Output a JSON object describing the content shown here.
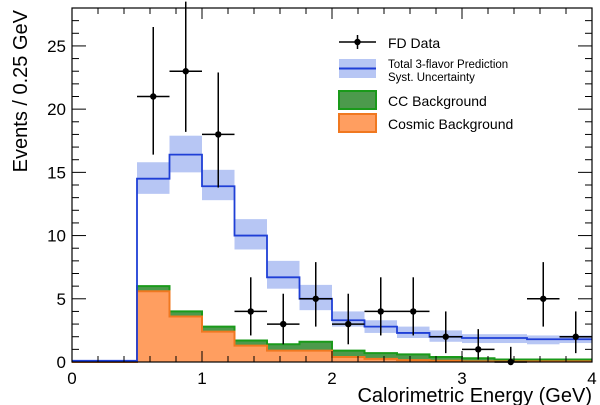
{
  "chart_data": {
    "type": "histogram",
    "xlabel": "Calorimetric Energy (GeV)",
    "ylabel": "Events / 0.25 GeV",
    "xlim": [
      0,
      4
    ],
    "ylim": [
      0,
      28
    ],
    "x_ticks": [
      "0",
      "1",
      "2",
      "3",
      "4"
    ],
    "y_ticks": [
      "0",
      "5",
      "10",
      "15",
      "20",
      "25"
    ],
    "legend_position": "top-right",
    "bin_edges": [
      0,
      0.5,
      0.75,
      1.0,
      1.25,
      1.5,
      1.75,
      2.0,
      2.25,
      2.5,
      2.75,
      3.0,
      3.25,
      3.5,
      3.75,
      4.0
    ],
    "series": [
      {
        "name": "Total 3-flavor Prediction",
        "band_name": "Syst. Uncertainty",
        "color": "#1f3fd6",
        "band_color": "#b7c6f4",
        "values": [
          0.1,
          14.5,
          16.4,
          13.9,
          10.0,
          6.7,
          5.0,
          3.3,
          2.8,
          2.3,
          2.0,
          1.9,
          1.9,
          1.8,
          1.8
        ],
        "band_low": [
          0.1,
          13.3,
          15.0,
          12.8,
          8.9,
          5.8,
          4.1,
          2.8,
          2.3,
          1.9,
          1.6,
          1.5,
          1.5,
          1.4,
          1.5
        ],
        "band_high": [
          0.1,
          15.8,
          17.9,
          15.2,
          11.3,
          8.0,
          6.1,
          4.0,
          3.3,
          2.8,
          2.5,
          2.2,
          2.2,
          2.1,
          2.1
        ]
      },
      {
        "name": "CC Background",
        "color": "#1a9a1a",
        "fill": "#4c9a4c",
        "values": [
          0,
          6.0,
          4.0,
          2.8,
          1.7,
          1.4,
          1.6,
          0.9,
          0.7,
          0.6,
          0.4,
          0.3,
          0.2,
          0.2,
          0.2
        ]
      },
      {
        "name": "Cosmic Background",
        "color": "#f07820",
        "fill": "#ff9e60",
        "values": [
          0,
          5.6,
          3.6,
          2.4,
          1.3,
          0.9,
          0.9,
          0.4,
          0.25,
          0.15,
          0.1,
          0.05,
          0.05,
          0.05,
          0.05
        ]
      }
    ],
    "data_points": {
      "name": "FD Data",
      "color": "#000000",
      "points": [
        {
          "x": 0.625,
          "y": 21,
          "err_low": 4.6,
          "err_high": 5.5
        },
        {
          "x": 0.875,
          "y": 23,
          "err_low": 4.8,
          "err_high": 5.5
        },
        {
          "x": 1.125,
          "y": 18,
          "err_low": 4.2,
          "err_high": 4.9
        },
        {
          "x": 1.375,
          "y": 4,
          "err_low": 1.9,
          "err_high": 2.7
        },
        {
          "x": 1.625,
          "y": 3,
          "err_low": 1.6,
          "err_high": 2.4
        },
        {
          "x": 1.875,
          "y": 5,
          "err_low": 2.2,
          "err_high": 2.9
        },
        {
          "x": 2.125,
          "y": 3,
          "err_low": 1.6,
          "err_high": 2.4
        },
        {
          "x": 2.375,
          "y": 4,
          "err_low": 1.9,
          "err_high": 2.7
        },
        {
          "x": 2.625,
          "y": 4,
          "err_low": 1.9,
          "err_high": 2.7
        },
        {
          "x": 2.875,
          "y": 2,
          "err_low": 1.3,
          "err_high": 2.0
        },
        {
          "x": 3.125,
          "y": 1,
          "err_low": 0.8,
          "err_high": 1.6
        },
        {
          "x": 3.375,
          "y": 0,
          "err_low": 0,
          "err_high": 1.2
        },
        {
          "x": 3.625,
          "y": 5,
          "err_low": 2.2,
          "err_high": 2.9
        },
        {
          "x": 3.875,
          "y": 2,
          "err_low": 1.3,
          "err_high": 2.0
        }
      ]
    }
  }
}
